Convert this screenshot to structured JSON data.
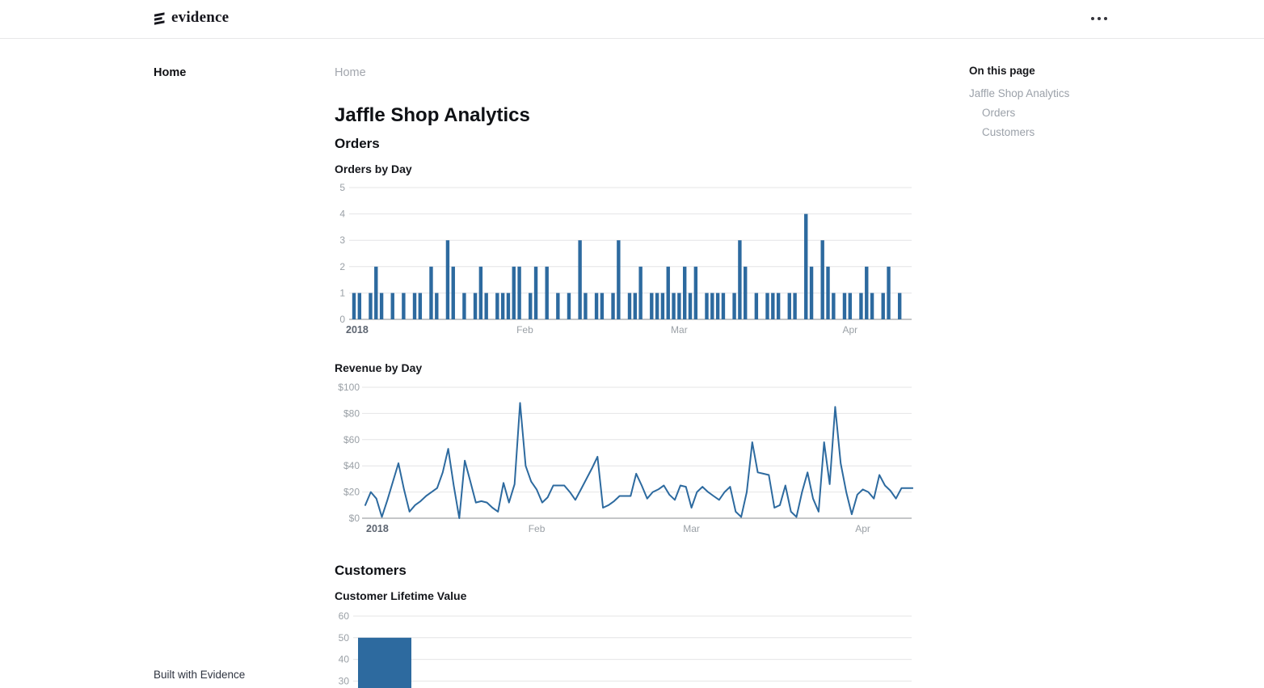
{
  "theme": {
    "accent": "#2d6a9f",
    "gridline": "#e4e4e6",
    "axis_line": "#8a8d92",
    "tick_label": "#9aa0a6",
    "year_label": "#5c6470"
  },
  "header": {
    "logo_text": "evidence",
    "more_menu_label": "more options"
  },
  "sidebar": {
    "items": [
      {
        "label": "Home",
        "active": true
      }
    ],
    "footer_label": "Built with Evidence"
  },
  "breadcrumb": {
    "items": [
      "Home"
    ]
  },
  "page": {
    "title": "Jaffle Shop Analytics",
    "section_orders": "Orders",
    "section_customers": "Customers"
  },
  "toc": {
    "title": "On this page",
    "items": [
      {
        "label": "Jaffle Shop Analytics",
        "indent": 0
      },
      {
        "label": "Orders",
        "indent": 1
      },
      {
        "label": "Customers",
        "indent": 1
      }
    ]
  },
  "chart_data": [
    {
      "type": "bar",
      "title": "Orders by Day",
      "xlabel": "",
      "ylabel": "",
      "x_start": "2018-01-01",
      "x_axis_labels": [
        "2018",
        "Feb",
        "Mar",
        "Apr"
      ],
      "month_label_day_index": [
        31,
        59,
        90
      ],
      "ylim": [
        0,
        5
      ],
      "yticks": [
        0,
        1,
        2,
        3,
        4,
        5
      ],
      "ytick_prefix": "",
      "grid": true,
      "legend": "none",
      "values": [
        1,
        1,
        0,
        1,
        2,
        1,
        0,
        1,
        0,
        1,
        0,
        1,
        1,
        0,
        2,
        1,
        0,
        3,
        2,
        0,
        1,
        0,
        1,
        2,
        1,
        0,
        1,
        1,
        1,
        2,
        2,
        0,
        1,
        2,
        0,
        2,
        0,
        1,
        0,
        1,
        0,
        3,
        1,
        0,
        1,
        1,
        0,
        1,
        3,
        0,
        1,
        1,
        2,
        0,
        1,
        1,
        1,
        2,
        1,
        1,
        2,
        1,
        2,
        0,
        1,
        1,
        1,
        1,
        0,
        1,
        3,
        2,
        0,
        1,
        0,
        1,
        1,
        1,
        0,
        1,
        1,
        0,
        4,
        2,
        0,
        3,
        2,
        1,
        0,
        1,
        1,
        0,
        1,
        2,
        1,
        0,
        1,
        2,
        0,
        1
      ]
    },
    {
      "type": "line",
      "title": "Revenue by Day",
      "xlabel": "",
      "ylabel": "",
      "x_start": "2018-01-01",
      "x_axis_labels": [
        "2018",
        "Feb",
        "Mar",
        "Apr"
      ],
      "month_label_day_index": [
        31,
        59,
        90
      ],
      "ylim": [
        0,
        100
      ],
      "yticks": [
        0,
        20,
        40,
        60,
        80,
        100
      ],
      "ytick_prefix": "$",
      "grid": true,
      "legend": "none",
      "values": [
        10,
        20,
        15,
        1,
        14,
        28,
        42,
        22,
        5,
        10,
        13,
        17,
        20,
        23,
        35,
        53,
        25,
        0,
        44,
        28,
        12,
        13,
        12,
        8,
        5,
        27,
        12,
        26,
        88,
        40,
        28,
        22,
        12,
        16,
        25,
        25,
        25,
        20,
        14,
        22,
        30,
        38,
        47,
        8,
        10,
        13,
        17,
        17,
        17,
        34,
        25,
        15,
        20,
        22,
        25,
        18,
        14,
        25,
        24,
        8,
        20,
        24,
        20,
        17,
        14,
        20,
        24,
        5,
        1,
        20,
        58,
        35,
        34,
        33,
        8,
        10,
        25,
        5,
        1,
        20,
        35,
        15,
        5,
        58,
        26,
        85,
        42,
        20,
        3,
        18,
        22,
        20,
        15,
        33,
        25,
        21,
        15,
        23,
        23,
        23
      ]
    },
    {
      "type": "bar",
      "title": "Customer Lifetime Value",
      "xlabel": "",
      "ylabel": "",
      "ylim_visible": [
        30,
        60
      ],
      "yticks": [
        30,
        40,
        50,
        60
      ],
      "ytick_prefix": "",
      "grid": true,
      "legend": "none",
      "categories": [
        ""
      ],
      "values": [
        50
      ]
    }
  ]
}
